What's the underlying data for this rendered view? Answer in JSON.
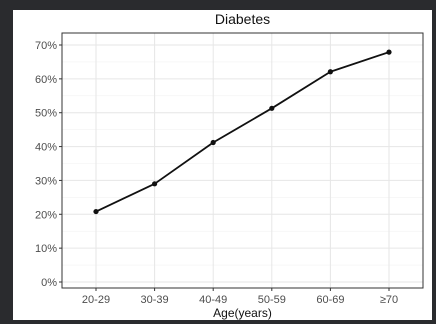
{
  "chart_data": {
    "type": "line",
    "title": "Diabetes",
    "xlabel": "Age(years)",
    "ylabel": "",
    "categories": [
      "20-29",
      "30-39",
      "40-49",
      "50-59",
      "60-69",
      "≥70"
    ],
    "series": [
      {
        "values": [
          20.8,
          29.0,
          41.2,
          51.3,
          62.1,
          67.9
        ]
      }
    ],
    "ylim": [
      0,
      70
    ],
    "yticks": [
      0,
      10,
      20,
      30,
      40,
      50,
      60,
      70
    ],
    "ytick_labels": [
      "0%",
      "10%",
      "20%",
      "30%",
      "40%",
      "50%",
      "60%",
      "70%"
    ],
    "grid": true,
    "colors": {
      "line": "#111111",
      "grid": "#e6e6e6",
      "border": "#333333",
      "background": "#ffffff"
    }
  }
}
